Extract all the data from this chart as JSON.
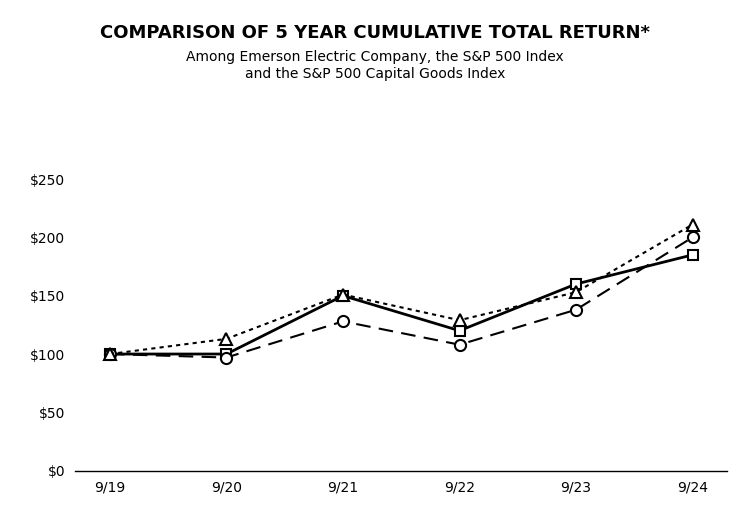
{
  "title": "COMPARISON OF 5 YEAR CUMULATIVE TOTAL RETURN*",
  "subtitle_line1": "Among Emerson Electric Company, the S&P 500 Index",
  "subtitle_line2": "and the S&P 500 Capital Goods Index",
  "x_labels": [
    "9/19",
    "9/20",
    "9/21",
    "9/22",
    "9/23",
    "9/24"
  ],
  "series": [
    {
      "name": "Emerson Electric",
      "values": [
        100,
        100,
        150,
        120,
        160,
        185
      ],
      "linestyle": "solid",
      "marker": "s",
      "color": "#000000",
      "linewidth": 2.0
    },
    {
      "name": "S&P 500",
      "values": [
        100,
        97,
        128,
        108,
        138,
        200
      ],
      "linestyle": "dashed",
      "marker": "o",
      "color": "#000000",
      "linewidth": 1.5
    },
    {
      "name": "S&P 500 Capital Goods",
      "values": [
        100,
        113,
        151,
        129,
        153,
        211
      ],
      "linestyle": "dotted",
      "marker": "^",
      "color": "#000000",
      "linewidth": 1.5
    }
  ],
  "ylim": [
    0,
    260
  ],
  "yticks": [
    0,
    50,
    100,
    150,
    200,
    250
  ],
  "ytick_labels": [
    "$0",
    "$50",
    "$100",
    "$150",
    "$200",
    "$250"
  ],
  "background_color": "#ffffff",
  "title_fontsize": 13,
  "subtitle_fontsize": 10,
  "tick_fontsize": 10,
  "marker_size_s": 7,
  "marker_size_o": 8,
  "marker_size_tri": 9
}
